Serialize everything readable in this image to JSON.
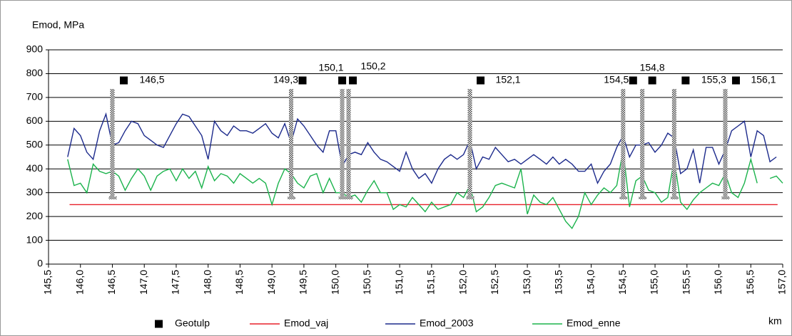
{
  "chart_data": {
    "type": "line",
    "y_label": "Emod, MPa",
    "x_unit": "km",
    "xlim": [
      145.5,
      157.0
    ],
    "ylim": [
      0,
      900
    ],
    "yticks": [
      0,
      100,
      200,
      300,
      400,
      500,
      600,
      700,
      800,
      900
    ],
    "xticks": [
      {
        "value": 145.5,
        "label": "145,5"
      },
      {
        "value": 146.0,
        "label": "146,0"
      },
      {
        "value": 146.5,
        "label": "146,5"
      },
      {
        "value": 147.0,
        "label": "147,0"
      },
      {
        "value": 147.5,
        "label": "147,5"
      },
      {
        "value": 148.0,
        "label": "148,0"
      },
      {
        "value": 148.5,
        "label": "148,5"
      },
      {
        "value": 149.0,
        "label": "149,0"
      },
      {
        "value": 149.5,
        "label": "149,5"
      },
      {
        "value": 150.0,
        "label": "150,0"
      },
      {
        "value": 150.5,
        "label": "150,5"
      },
      {
        "value": 151.0,
        "label": "151,0"
      },
      {
        "value": 151.5,
        "label": "151,5"
      },
      {
        "value": 152.0,
        "label": "152,0"
      },
      {
        "value": 152.5,
        "label": "152,5"
      },
      {
        "value": 153.0,
        "label": "153,0"
      },
      {
        "value": 153.5,
        "label": "153,5"
      },
      {
        "value": 154.0,
        "label": "154,0"
      },
      {
        "value": 154.5,
        "label": "154,5"
      },
      {
        "value": 155.0,
        "label": "155,0"
      },
      {
        "value": 155.5,
        "label": "155,5"
      },
      {
        "value": 156.0,
        "label": "156,0"
      },
      {
        "value": 156.5,
        "label": "156,5"
      },
      {
        "value": 157.0,
        "label": "157,0"
      }
    ],
    "grid": true,
    "x": [
      145.8,
      145.9,
      146.0,
      146.1,
      146.2,
      146.3,
      146.4,
      146.5,
      146.6,
      146.7,
      146.8,
      146.9,
      147.0,
      147.1,
      147.2,
      147.3,
      147.4,
      147.5,
      147.6,
      147.7,
      147.8,
      147.9,
      148.0,
      148.1,
      148.2,
      148.3,
      148.4,
      148.5,
      148.6,
      148.7,
      148.8,
      148.9,
      149.0,
      149.1,
      149.2,
      149.3,
      149.4,
      149.5,
      149.6,
      149.7,
      149.8,
      149.9,
      150.0,
      150.1,
      150.2,
      150.3,
      150.4,
      150.5,
      150.6,
      150.7,
      150.8,
      150.9,
      151.0,
      151.1,
      151.2,
      151.3,
      151.4,
      151.5,
      151.6,
      151.7,
      151.8,
      151.9,
      152.0,
      152.1,
      152.2,
      152.3,
      152.4,
      152.5,
      152.6,
      152.7,
      152.8,
      152.9,
      153.0,
      153.1,
      153.2,
      153.3,
      153.4,
      153.5,
      153.6,
      153.7,
      153.8,
      153.9,
      154.0,
      154.1,
      154.2,
      154.3,
      154.4,
      154.5,
      154.6,
      154.7,
      154.8,
      154.9,
      155.0,
      155.1,
      155.2,
      155.3,
      155.4,
      155.5,
      155.6,
      155.7,
      155.8,
      155.9,
      156.0,
      156.1,
      156.2,
      156.3,
      156.4,
      156.5,
      156.6,
      156.7,
      156.8,
      156.9,
      157.0
    ],
    "markers": {
      "name": "Geotulp",
      "color": "#000000",
      "x": [
        146.5,
        149.3,
        150.1,
        150.2,
        152.1,
        154.5,
        154.8,
        155.3,
        156.1
      ],
      "x_labels": [
        "146,5",
        "149,3",
        "150,1",
        "150,2",
        "152,1",
        "154,5",
        "154,8",
        "155,3",
        "156,1"
      ]
    },
    "series": [
      {
        "name": "Emod_vaj",
        "color": "#e8202a",
        "x": [
          145.83,
          156.92
        ],
        "values": [
          250,
          250
        ]
      },
      {
        "name": "Emod_2003",
        "color": "#1c2a8c",
        "values": [
          450,
          570,
          540,
          470,
          440,
          560,
          630,
          500,
          510,
          560,
          600,
          590,
          540,
          520,
          500,
          490,
          540,
          590,
          630,
          620,
          580,
          540,
          440,
          600,
          560,
          540,
          580,
          560,
          560,
          550,
          570,
          590,
          550,
          530,
          590,
          510,
          610,
          580,
          540,
          500,
          470,
          560,
          560,
          410,
          460,
          470,
          460,
          510,
          470,
          440,
          430,
          410,
          390,
          470,
          400,
          360,
          380,
          340,
          400,
          440,
          460,
          440,
          460,
          520,
          400,
          450,
          440,
          490,
          460,
          430,
          440,
          420,
          440,
          460,
          440,
          420,
          450,
          420,
          440,
          420,
          390,
          390,
          420,
          340,
          390,
          420,
          490,
          540,
          450,
          500,
          500,
          510,
          470,
          500,
          550,
          530,
          380,
          400,
          480,
          340,
          490,
          490,
          420,
          480,
          560,
          580,
          600,
          450,
          560,
          540,
          430,
          450,
          null
        ]
      },
      {
        "name": "Emod_enne",
        "color": "#1bb34c",
        "values": [
          440,
          330,
          340,
          300,
          420,
          390,
          380,
          390,
          370,
          310,
          360,
          400,
          370,
          310,
          370,
          390,
          400,
          350,
          400,
          360,
          390,
          320,
          410,
          350,
          380,
          370,
          340,
          380,
          360,
          340,
          360,
          340,
          250,
          340,
          400,
          380,
          340,
          320,
          370,
          380,
          300,
          360,
          300,
          300,
          280,
          290,
          260,
          310,
          350,
          300,
          300,
          230,
          250,
          240,
          280,
          250,
          220,
          260,
          230,
          240,
          250,
          300,
          280,
          330,
          220,
          240,
          280,
          330,
          340,
          330,
          320,
          400,
          210,
          290,
          260,
          250,
          280,
          230,
          180,
          150,
          200,
          300,
          250,
          290,
          320,
          300,
          330,
          480,
          240,
          350,
          370,
          310,
          300,
          260,
          280,
          440,
          260,
          230,
          270,
          300,
          320,
          340,
          330,
          380,
          300,
          280,
          340,
          440,
          340,
          null,
          360,
          370,
          340
        ]
      }
    ]
  }
}
